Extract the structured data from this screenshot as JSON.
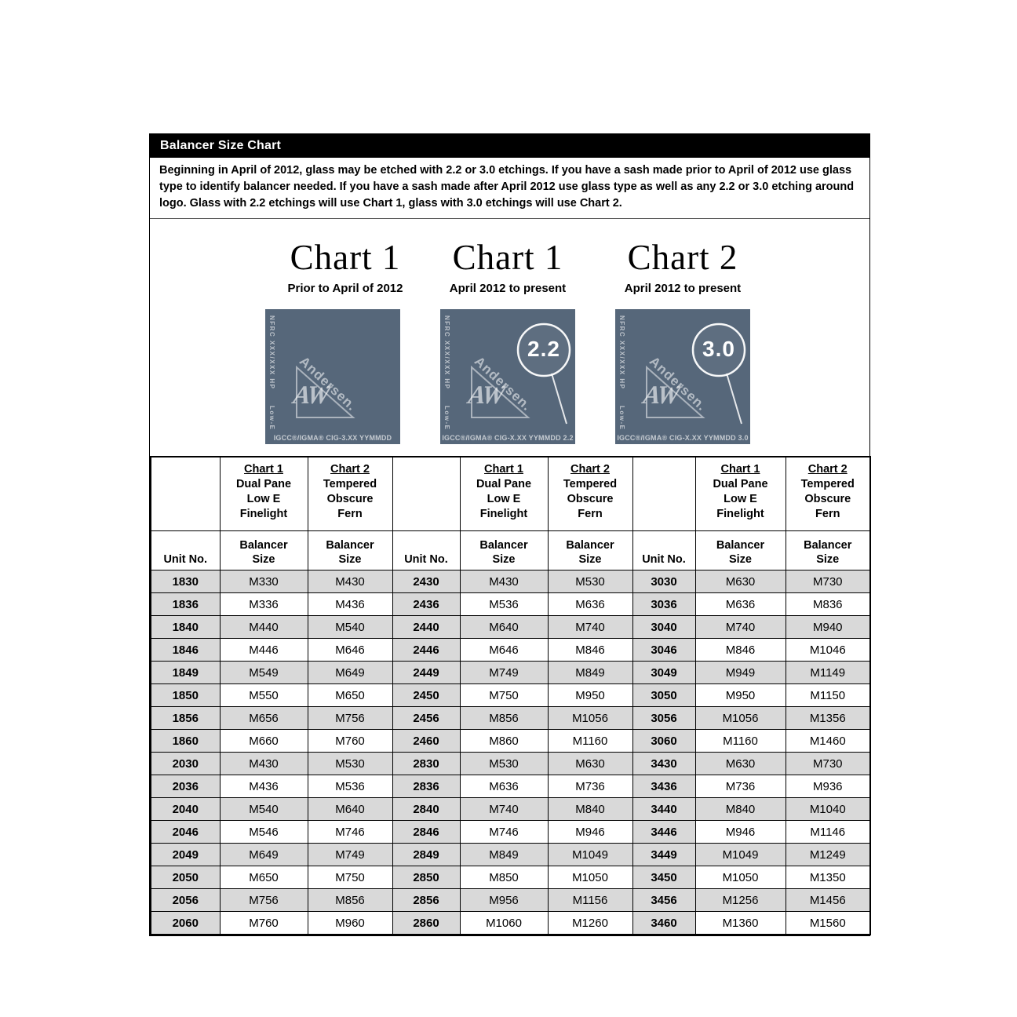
{
  "title_bar": {
    "title": "Balancer Size Chart"
  },
  "intro": {
    "text": "Beginning in April of 2012, glass may be etched with 2.2 or 3.0 etchings.  If you have a sash made prior to April of 2012 use glass type to identify balancer needed.  If you have a sash made after April 2012 use glass type as well as any 2.2 or 3.0 etching around logo. Glass with 2.2 etchings will use Chart 1, glass with 3.0 etchings will use Chart 2."
  },
  "charts": [
    {
      "title": "Chart 1",
      "subtitle": "Prior to April of 2012",
      "etching": "",
      "nfrc_label": "NFRC XXX/XXX HP",
      "lowe_label": "Low-E",
      "brand": "Andersen.",
      "brand_mark": "AW",
      "bottom_label": "IGCC®/IGMA® CIG-3.XX YYMMDD"
    },
    {
      "title": "Chart 1",
      "subtitle": "April 2012 to present",
      "etching": "2.2",
      "nfrc_label": "NFRC XXX/XXX HP",
      "lowe_label": "Low-E",
      "brand": "Andersen.",
      "brand_mark": "AW",
      "bottom_label": "IGCC®/IGMA® CIG-X.XX YYMMDD 2.2"
    },
    {
      "title": "Chart 2",
      "subtitle": "April 2012 to present",
      "etching": "3.0",
      "nfrc_label": "NFRC XXX/XXX HP",
      "lowe_label": "Low-E",
      "brand": "Andersen.",
      "brand_mark": "AW",
      "bottom_label": "IGCC®/IGMA® CIG-X.XX YYMMDD 3.0"
    }
  ],
  "table": {
    "chart1_header": [
      "Chart 1",
      "Dual Pane",
      "Low E",
      "Finelight"
    ],
    "chart2_header": [
      "Chart 2",
      "Tempered",
      "Obscure",
      "Fern"
    ],
    "unit_header": "Unit No.",
    "balancer_header": [
      "Balancer",
      "Size"
    ],
    "groups": [
      {
        "rows": [
          [
            "1830",
            "M330",
            "M430"
          ],
          [
            "1836",
            "M336",
            "M436"
          ],
          [
            "1840",
            "M440",
            "M540"
          ],
          [
            "1846",
            "M446",
            "M646"
          ],
          [
            "1849",
            "M549",
            "M649"
          ],
          [
            "1850",
            "M550",
            "M650"
          ],
          [
            "1856",
            "M656",
            "M756"
          ],
          [
            "1860",
            "M660",
            "M760"
          ],
          [
            "2030",
            "M430",
            "M530"
          ],
          [
            "2036",
            "M436",
            "M536"
          ],
          [
            "2040",
            "M540",
            "M640"
          ],
          [
            "2046",
            "M546",
            "M746"
          ],
          [
            "2049",
            "M649",
            "M749"
          ],
          [
            "2050",
            "M650",
            "M750"
          ],
          [
            "2056",
            "M756",
            "M856"
          ],
          [
            "2060",
            "M760",
            "M960"
          ]
        ]
      },
      {
        "rows": [
          [
            "2430",
            "M430",
            "M530"
          ],
          [
            "2436",
            "M536",
            "M636"
          ],
          [
            "2440",
            "M640",
            "M740"
          ],
          [
            "2446",
            "M646",
            "M846"
          ],
          [
            "2449",
            "M749",
            "M849"
          ],
          [
            "2450",
            "M750",
            "M950"
          ],
          [
            "2456",
            "M856",
            "M1056"
          ],
          [
            "2460",
            "M860",
            "M1160"
          ],
          [
            "2830",
            "M530",
            "M630"
          ],
          [
            "2836",
            "M636",
            "M736"
          ],
          [
            "2840",
            "M740",
            "M840"
          ],
          [
            "2846",
            "M746",
            "M946"
          ],
          [
            "2849",
            "M849",
            "M1049"
          ],
          [
            "2850",
            "M850",
            "M1050"
          ],
          [
            "2856",
            "M956",
            "M1156"
          ],
          [
            "2860",
            "M1060",
            "M1260"
          ]
        ]
      },
      {
        "rows": [
          [
            "3030",
            "M630",
            "M730"
          ],
          [
            "3036",
            "M636",
            "M836"
          ],
          [
            "3040",
            "M740",
            "M940"
          ],
          [
            "3046",
            "M846",
            "M1046"
          ],
          [
            "3049",
            "M949",
            "M1149"
          ],
          [
            "3050",
            "M950",
            "M1150"
          ],
          [
            "3056",
            "M1056",
            "M1356"
          ],
          [
            "3060",
            "M1160",
            "M1460"
          ],
          [
            "3430",
            "M630",
            "M730"
          ],
          [
            "3436",
            "M736",
            "M936"
          ],
          [
            "3440",
            "M840",
            "M1040"
          ],
          [
            "3446",
            "M946",
            "M1146"
          ],
          [
            "3449",
            "M1049",
            "M1249"
          ],
          [
            "3450",
            "M1050",
            "M1350"
          ],
          [
            "3456",
            "M1256",
            "M1456"
          ],
          [
            "3460",
            "M1360",
            "M1560"
          ]
        ]
      }
    ]
  },
  "colors": {
    "glass_bg": "#56677a",
    "stripe": "#d9d9d9",
    "title_bar_bg": "#000000"
  }
}
